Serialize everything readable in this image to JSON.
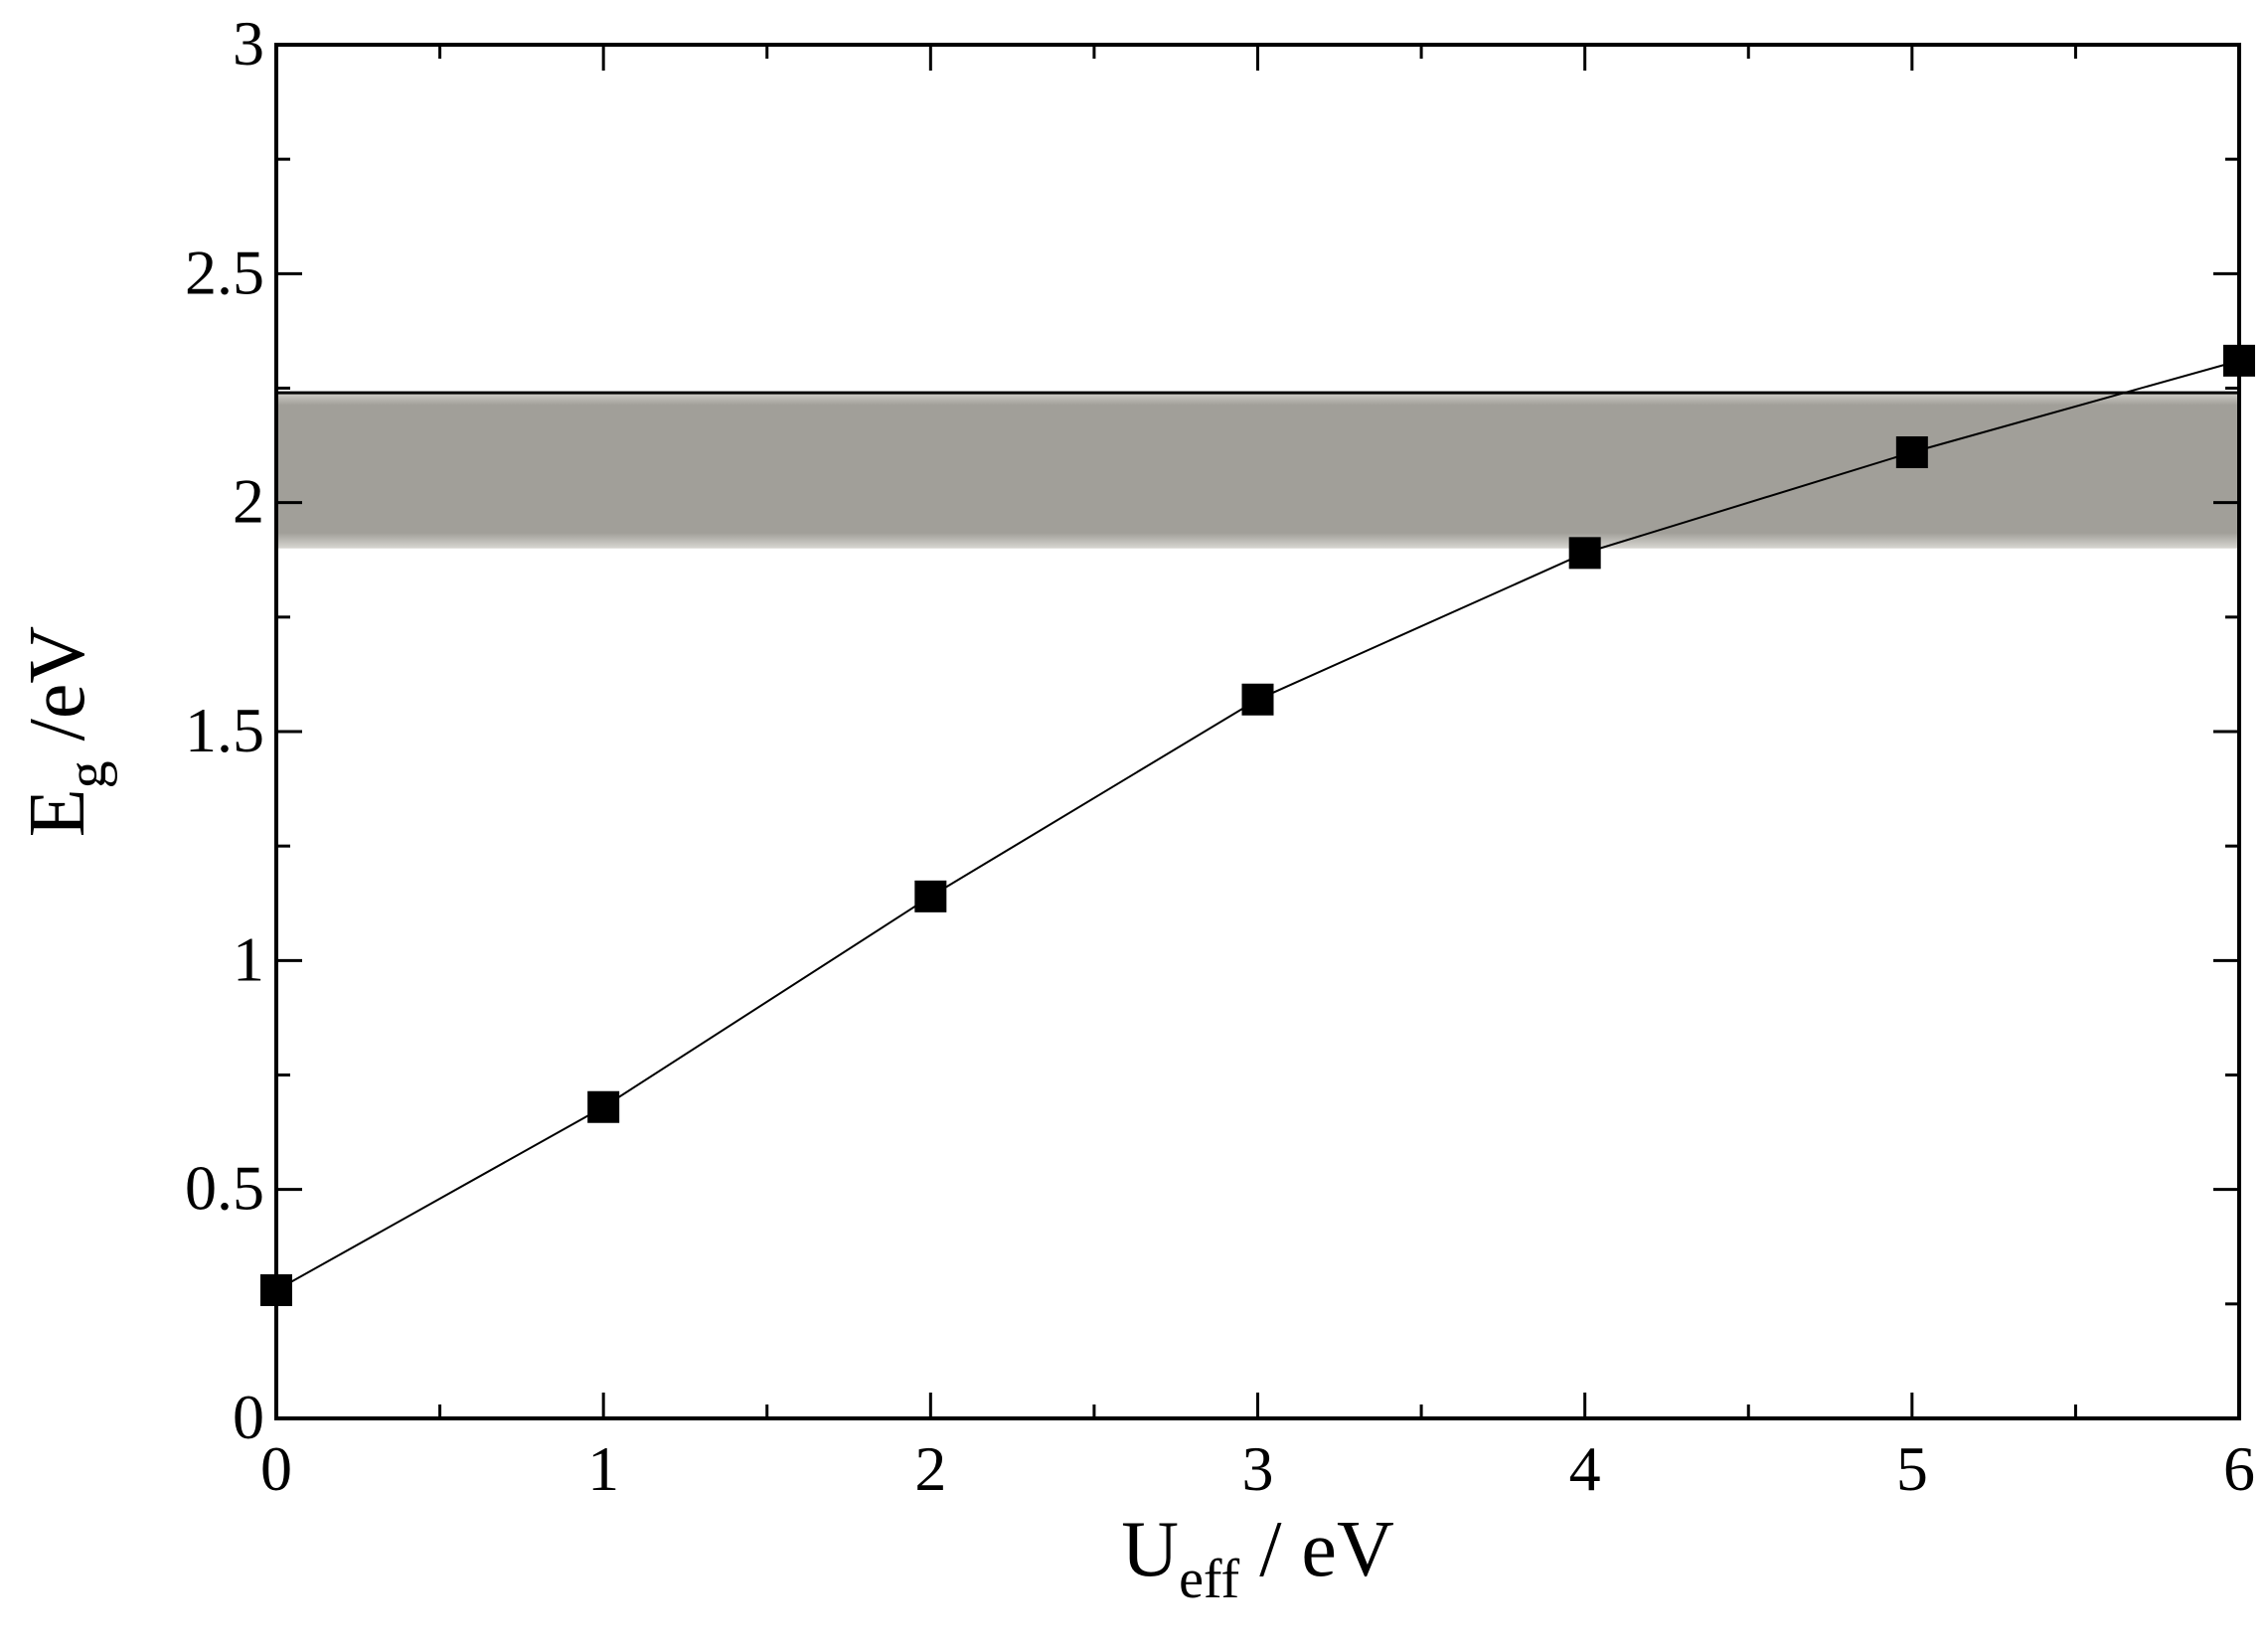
{
  "chart_data": {
    "type": "line",
    "title": "",
    "xlabel": {
      "main": "U",
      "sub": "eff",
      "rest": " / eV"
    },
    "ylabel": {
      "main": "E",
      "sub": "g",
      "rest": " /eV"
    },
    "xlim": [
      0,
      6
    ],
    "ylim": [
      0,
      3
    ],
    "x_ticks": [
      "0",
      "1",
      "2",
      "3",
      "4",
      "5",
      "6"
    ],
    "y_ticks": [
      "0",
      "0.5",
      "1",
      "1.5",
      "2",
      "2.5",
      "3"
    ],
    "grid": false,
    "legend": "none",
    "band": {
      "y_from": 1.9,
      "y_to": 2.24,
      "color": "#a19f99"
    },
    "series": [
      {
        "x": [
          0,
          1,
          2,
          3,
          4,
          5,
          6
        ],
        "y": [
          0.28,
          0.68,
          1.14,
          1.57,
          1.89,
          2.11,
          2.31
        ],
        "marker": "square",
        "color": "#000000"
      }
    ]
  }
}
